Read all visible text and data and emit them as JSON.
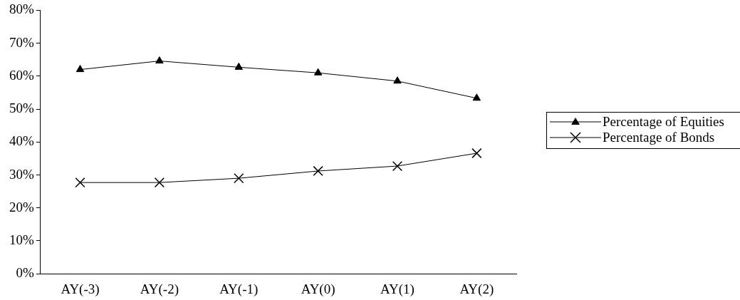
{
  "chart_data": {
    "type": "line",
    "categories": [
      "AY(-3)",
      "AY(-2)",
      "AY(-1)",
      "AY(0)",
      "AY(1)",
      "AY(2)"
    ],
    "series": [
      {
        "name": "Percentage of Equities",
        "color": "#000000",
        "marker": "triangle",
        "values": [
          62.0,
          64.6,
          62.7,
          61.0,
          58.5,
          53.3
        ]
      },
      {
        "name": "Percentage of Bonds",
        "color": "#000000",
        "marker": "cross",
        "values": [
          27.7,
          27.7,
          29.0,
          31.2,
          32.7,
          36.6
        ]
      }
    ],
    "ylim": [
      0,
      80
    ],
    "yticks": [
      {
        "value": 0,
        "label": "0%"
      },
      {
        "value": 10,
        "label": "10%"
      },
      {
        "value": 20,
        "label": "20%"
      },
      {
        "value": 30,
        "label": "30%"
      },
      {
        "value": 40,
        "label": "40%"
      },
      {
        "value": 50,
        "label": "50%"
      },
      {
        "value": 60,
        "label": "60%"
      },
      {
        "value": 70,
        "label": "70%"
      },
      {
        "value": 80,
        "label": "80%"
      }
    ],
    "grid": false,
    "legend": "right",
    "line_style": "solid"
  }
}
